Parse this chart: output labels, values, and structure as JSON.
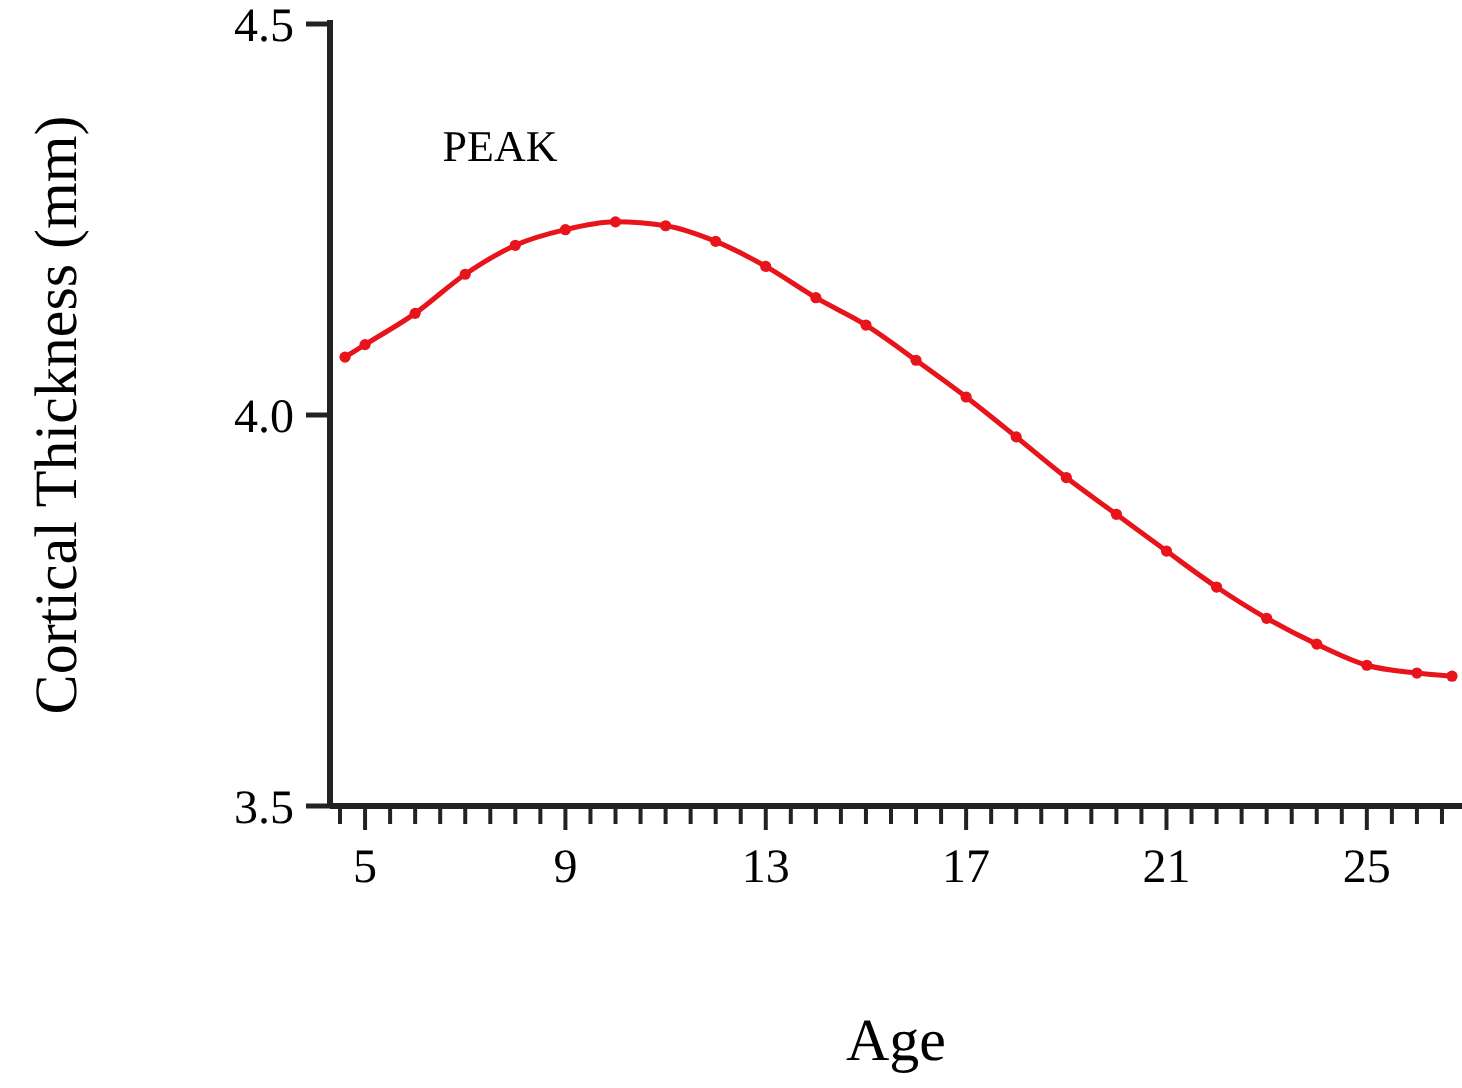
{
  "chart_data": {
    "type": "line",
    "xlabel": "Age",
    "ylabel": "Cortical Thickness (mm)",
    "xlim": [
      4.3,
      26.9
    ],
    "ylim": [
      3.5,
      4.5
    ],
    "xticks": [
      {
        "value": 4.5,
        "label": null
      },
      5,
      {
        "value": 5.5,
        "label": null
      },
      {
        "value": 6,
        "label": null
      },
      {
        "value": 6.5,
        "label": null
      },
      {
        "value": 7,
        "label": null
      },
      {
        "value": 7.5,
        "label": null
      },
      {
        "value": 8,
        "label": null
      },
      {
        "value": 8.5,
        "label": null
      },
      9,
      {
        "value": 9.5,
        "label": null
      },
      {
        "value": 10,
        "label": null
      },
      {
        "value": 10.5,
        "label": null
      },
      {
        "value": 11,
        "label": null
      },
      {
        "value": 11.5,
        "label": null
      },
      {
        "value": 12,
        "label": null
      },
      {
        "value": 12.5,
        "label": null
      },
      13,
      {
        "value": 13.5,
        "label": null
      },
      {
        "value": 14,
        "label": null
      },
      {
        "value": 14.5,
        "label": null
      },
      {
        "value": 15,
        "label": null
      },
      {
        "value": 15.5,
        "label": null
      },
      {
        "value": 16,
        "label": null
      },
      {
        "value": 16.5,
        "label": null
      },
      17,
      {
        "value": 17.5,
        "label": null
      },
      {
        "value": 18,
        "label": null
      },
      {
        "value": 18.5,
        "label": null
      },
      {
        "value": 19,
        "label": null
      },
      {
        "value": 19.5,
        "label": null
      },
      {
        "value": 20,
        "label": null
      },
      {
        "value": 20.5,
        "label": null
      },
      21,
      {
        "value": 21.5,
        "label": null
      },
      {
        "value": 22,
        "label": null
      },
      {
        "value": 22.5,
        "label": null
      },
      {
        "value": 23,
        "label": null
      },
      {
        "value": 23.5,
        "label": null
      },
      {
        "value": 24,
        "label": null
      },
      {
        "value": 24.5,
        "label": null
      },
      25,
      {
        "value": 25.5,
        "label": null
      },
      {
        "value": 26,
        "label": null
      },
      {
        "value": 26.5,
        "label": null
      }
    ],
    "yticks": [
      {
        "value": 3.5,
        "label": "3.5"
      },
      {
        "value": 4.0,
        "label": "4.0"
      },
      {
        "value": 4.5,
        "label": "4.5"
      }
    ],
    "grid": false,
    "marker": "circle",
    "line_style": "solid",
    "annotations": [
      "PEAK"
    ],
    "series": [
      {
        "color": "#e8141c",
        "x": [
          4.6,
          5,
          6,
          7,
          8,
          9,
          10,
          11,
          12,
          13,
          14,
          15,
          16,
          17,
          18,
          19,
          20,
          21,
          22,
          23,
          24,
          25,
          26,
          26.7
        ],
        "values": [
          4.074,
          4.09,
          4.13,
          4.18,
          4.217,
          4.237,
          4.247,
          4.242,
          4.222,
          4.19,
          4.15,
          4.115,
          4.07,
          4.023,
          3.972,
          3.92,
          3.873,
          3.826,
          3.78,
          3.74,
          3.707,
          3.68,
          3.67,
          3.666
        ]
      }
    ]
  }
}
